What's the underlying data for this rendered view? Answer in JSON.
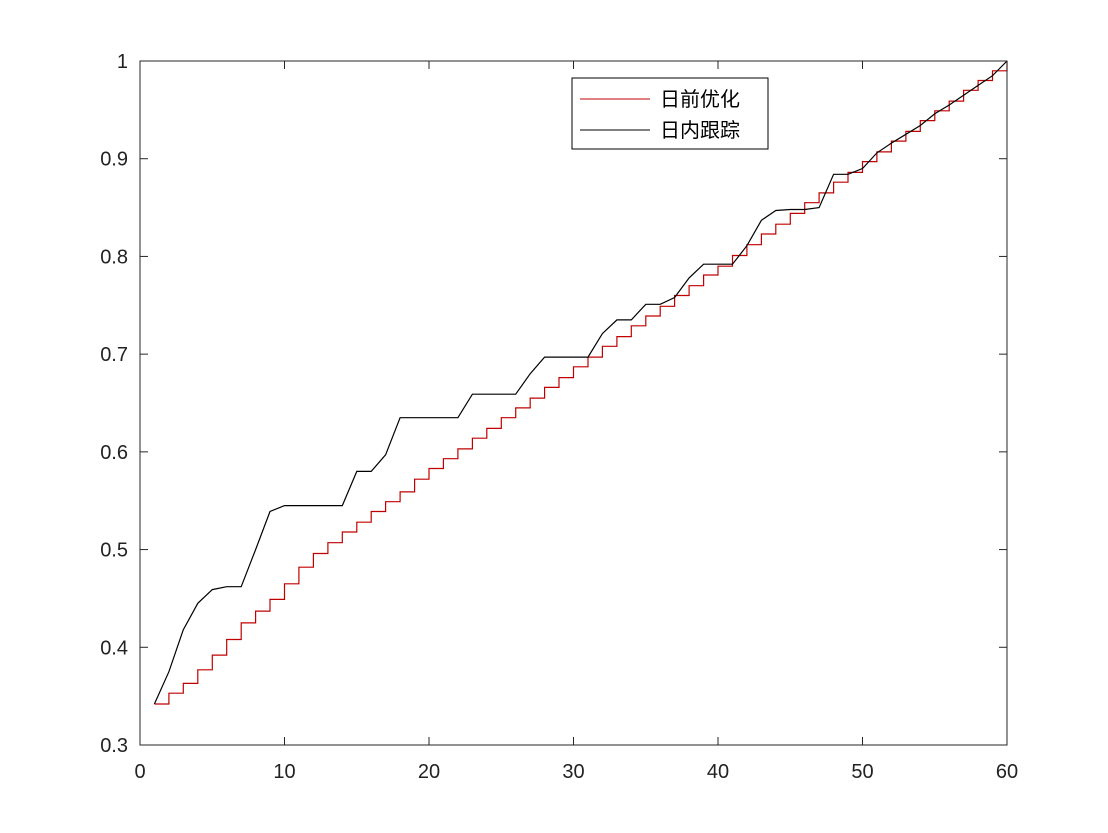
{
  "chart_data": {
    "type": "line",
    "title": "",
    "xlabel": "",
    "ylabel": "",
    "xlim": [
      0,
      60
    ],
    "ylim": [
      0.3,
      1
    ],
    "xticks": [
      0,
      10,
      20,
      30,
      40,
      50,
      60
    ],
    "yticks": [
      0.3,
      0.4,
      0.5,
      0.6,
      0.7,
      0.8,
      0.9,
      1
    ],
    "xtick_labels": [
      "0",
      "10",
      "20",
      "30",
      "40",
      "50",
      "60"
    ],
    "ytick_labels": [
      "0.3",
      "0.4",
      "0.5",
      "0.6",
      "0.7",
      "0.8",
      "0.9",
      "1"
    ],
    "grid": false,
    "legend_position": "top-right",
    "series": [
      {
        "name": "日前优化",
        "color": "#c00000",
        "style": "step",
        "x": [
          1,
          2,
          3,
          4,
          5,
          6,
          7,
          8,
          9,
          10,
          11,
          12,
          13,
          14,
          15,
          16,
          17,
          18,
          19,
          20,
          21,
          22,
          23,
          24,
          25,
          26,
          27,
          28,
          29,
          30,
          31,
          32,
          33,
          34,
          35,
          36,
          37,
          38,
          39,
          40,
          41,
          42,
          43,
          44,
          45,
          46,
          47,
          48,
          49,
          50,
          51,
          52,
          53,
          54,
          55,
          56,
          57,
          58,
          59,
          60
        ],
        "y": [
          0.342,
          0.353,
          0.363,
          0.377,
          0.392,
          0.408,
          0.425,
          0.437,
          0.449,
          0.465,
          0.482,
          0.496,
          0.507,
          0.518,
          0.528,
          0.539,
          0.549,
          0.559,
          0.572,
          0.583,
          0.593,
          0.603,
          0.614,
          0.624,
          0.635,
          0.645,
          0.655,
          0.666,
          0.676,
          0.687,
          0.697,
          0.708,
          0.718,
          0.729,
          0.739,
          0.749,
          0.76,
          0.77,
          0.781,
          0.79,
          0.801,
          0.812,
          0.823,
          0.833,
          0.844,
          0.855,
          0.865,
          0.876,
          0.886,
          0.897,
          0.907,
          0.918,
          0.928,
          0.939,
          0.949,
          0.959,
          0.97,
          0.98,
          0.99,
          1.0
        ]
      },
      {
        "name": "日内跟踪",
        "color": "#000000",
        "style": "line",
        "x": [
          1,
          2,
          3,
          4,
          5,
          6,
          7,
          8,
          9,
          10,
          11,
          12,
          13,
          14,
          15,
          16,
          17,
          18,
          19,
          20,
          21,
          22,
          23,
          24,
          25,
          26,
          27,
          28,
          29,
          30,
          31,
          32,
          33,
          34,
          35,
          36,
          37,
          38,
          39,
          40,
          41,
          42,
          43,
          44,
          45,
          46,
          47,
          48,
          49,
          50,
          51,
          52,
          53,
          54,
          55,
          56,
          57,
          58,
          59,
          60
        ],
        "y": [
          0.342,
          0.375,
          0.418,
          0.445,
          0.459,
          0.462,
          0.462,
          0.5,
          0.539,
          0.545,
          0.545,
          0.545,
          0.545,
          0.545,
          0.58,
          0.58,
          0.597,
          0.635,
          0.635,
          0.635,
          0.635,
          0.635,
          0.659,
          0.659,
          0.659,
          0.659,
          0.68,
          0.697,
          0.697,
          0.697,
          0.697,
          0.721,
          0.735,
          0.735,
          0.751,
          0.751,
          0.758,
          0.778,
          0.792,
          0.792,
          0.792,
          0.811,
          0.837,
          0.847,
          0.848,
          0.848,
          0.85,
          0.884,
          0.884,
          0.89,
          0.906,
          0.916,
          0.925,
          0.934,
          0.946,
          0.955,
          0.965,
          0.975,
          0.985,
          1.0
        ]
      }
    ]
  }
}
